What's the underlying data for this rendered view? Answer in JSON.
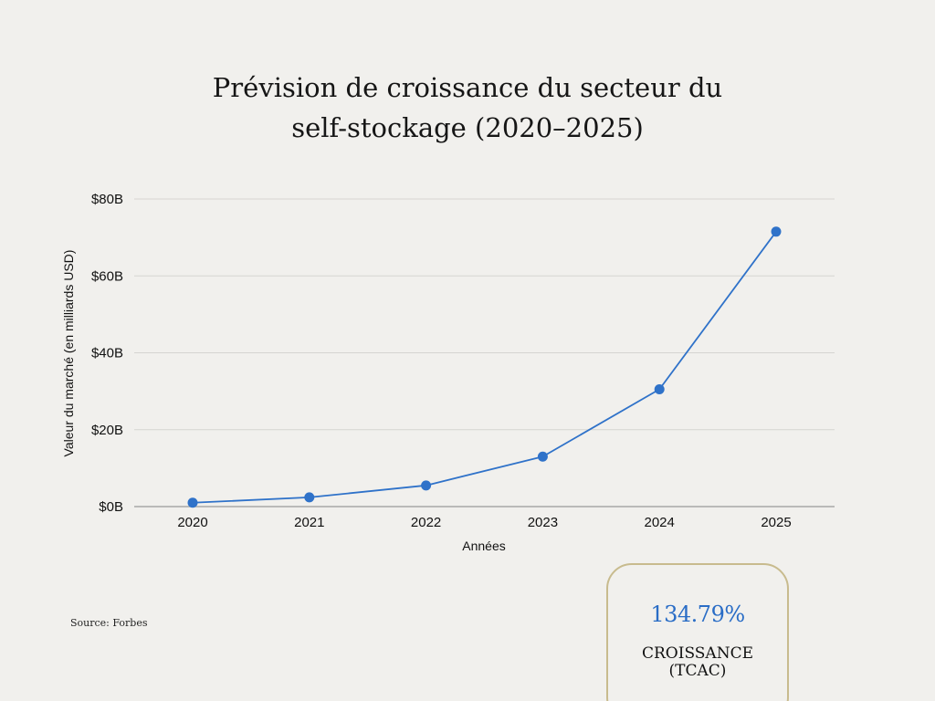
{
  "title": {
    "line1": "Prévision de croissance du secteur du",
    "line2": "self-stockage (2020–2025)"
  },
  "chart_data": {
    "type": "line",
    "title": "Prévision de croissance du secteur du self-stockage (2020–2025)",
    "xlabel": "Années",
    "ylabel": "Valeur du marché (en milliards USD)",
    "categories": [
      "2020",
      "2021",
      "2022",
      "2023",
      "2024",
      "2025"
    ],
    "series": [
      {
        "values": [
          1,
          2.4,
          5.5,
          13,
          30.5,
          71.5
        ],
        "color": "#2f72c9"
      }
    ],
    "ylim": [
      0,
      80
    ],
    "yticks": [
      {
        "value": 0,
        "label": "$0B"
      },
      {
        "value": 20,
        "label": "$20B"
      },
      {
        "value": 40,
        "label": "$40B"
      },
      {
        "value": 60,
        "label": "$60B"
      },
      {
        "value": 80,
        "label": "$80B"
      }
    ],
    "grid": true,
    "legend": "none"
  },
  "source": "Source: Forbes",
  "stat": {
    "value": "134.79%",
    "label_line1": "CROISSANCE",
    "label_line2": "(TCAC)"
  },
  "colors": {
    "background": "#f1f0ed",
    "line": "#2f72c9",
    "accent_value": "#2a6dc6",
    "card_border": "#c8bb8e"
  }
}
